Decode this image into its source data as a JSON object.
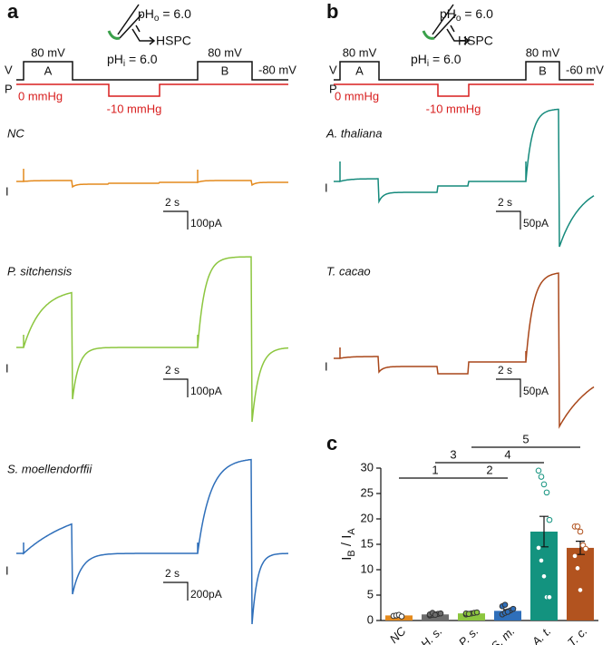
{
  "panel_a": {
    "label": "a",
    "protocol": {
      "v": "V",
      "p": "P",
      "pulse_a_voltage": "80 mV",
      "pulse_a": "A",
      "pulse_b_voltage": "80 mV",
      "pulse_b": "B",
      "holding": "-80 mV",
      "pressure_0": "0 mmHg",
      "pressure_1": "-10 mmHg",
      "ph_out": [
        "pH",
        "o",
        " = 6.0"
      ],
      "ph_in": [
        "pH",
        "i",
        " = 6.0"
      ],
      "compound": "HSPC"
    },
    "traces": [
      {
        "name": "NC",
        "current_marker": "I",
        "time_scale": "2 s",
        "current_scale": "100pA",
        "color": "#e48a1d"
      },
      {
        "name": "P. sitchensis",
        "current_marker": "I",
        "time_scale": "2 s",
        "current_scale": "100pA",
        "color": "#8cc63f"
      },
      {
        "name": "S. moellendorffii",
        "current_marker": "I",
        "time_scale": "2 s",
        "current_scale": "200pA",
        "color": "#2f6fba"
      }
    ]
  },
  "panel_b": {
    "label": "b",
    "protocol": {
      "v": "V",
      "p": "P",
      "pulse_a_voltage": "80 mV",
      "pulse_a": "A",
      "pulse_b_voltage": "80 mV",
      "pulse_b": "B",
      "holding": "-60 mV",
      "pressure_0": "0 mmHg",
      "pressure_1": "-10 mmHg",
      "ph_out": [
        "pH",
        "o",
        " = 6.0"
      ],
      "ph_in": [
        "pH",
        "i",
        " = 6.0"
      ],
      "compound": "HSPC"
    },
    "traces": [
      {
        "name": "A. thaliana",
        "current_marker": "I",
        "time_scale": "2 s",
        "current_scale": "50pA",
        "color": "#158a7c"
      },
      {
        "name": "T. cacao",
        "current_marker": "I",
        "time_scale": "2 s",
        "current_scale": "50pA",
        "color": "#a9471a"
      }
    ]
  },
  "chart_data": {
    "type": "bar",
    "panel_label": "c",
    "y_label": [
      "I",
      "B",
      " / I",
      "A"
    ],
    "categories": [
      "NC",
      "H. s.",
      "P. s.",
      "S. m.",
      "A. t.",
      "T. c."
    ],
    "values": [
      1.0,
      1.2,
      1.4,
      1.9,
      17.5,
      14.3
    ],
    "errors": [
      0.1,
      0.1,
      0.1,
      0.25,
      3.0,
      1.3
    ],
    "colors": [
      "#e48a1d",
      "#6d6d6d",
      "#8cc63f",
      "#2f6fba",
      "#13937f",
      "#b2531f"
    ],
    "points": [
      [
        0.9,
        1.0,
        1.1,
        0.8
      ],
      [
        1.0,
        1.1,
        1.2,
        1.3,
        1.4,
        1.2,
        1.5,
        1.1
      ],
      [
        1.2,
        1.3,
        1.4,
        1.5,
        1.6,
        1.4,
        1.3
      ],
      [
        1.2,
        1.5,
        1.8,
        2.0,
        2.3,
        2.8,
        3.1,
        1.7
      ],
      [
        29.5,
        28.3,
        26.8,
        25.2,
        19.8,
        14.3,
        11.8,
        8.7,
        4.6,
        4.6
      ],
      [
        18.5,
        18.5,
        17.5,
        14.8,
        14.1,
        12.7,
        10.3,
        6.0
      ]
    ],
    "ylim": [
      0,
      30
    ],
    "yticks": [
      0,
      5,
      10,
      15,
      20,
      25,
      30
    ],
    "annotations": [
      "1",
      "2",
      "3",
      "4",
      "5"
    ]
  }
}
